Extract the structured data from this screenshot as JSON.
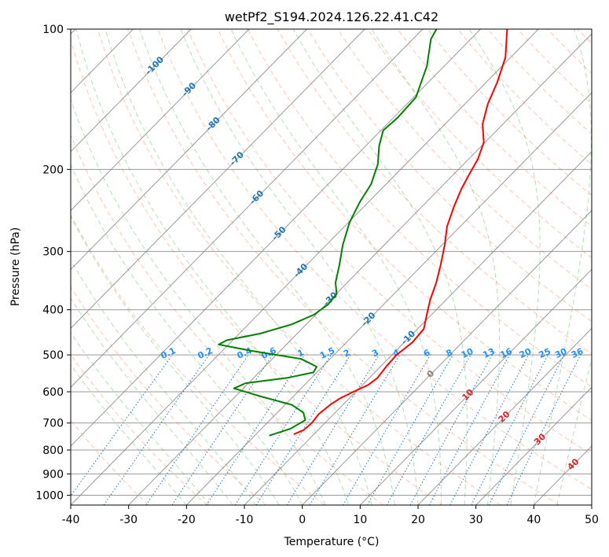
{
  "chart_data": {
    "type": "skew-t",
    "title": "wetPf2_S194.2024.126.22.41.C42",
    "xlabel": "Temperature (°C)",
    "ylabel": "Pressure (hPa)",
    "xlim": [
      -40,
      50
    ],
    "ylim": [
      1050,
      100
    ],
    "y_scale": "log",
    "grid": true,
    "x_ticks": [
      -40,
      -30,
      -20,
      -10,
      0,
      10,
      20,
      30,
      40,
      50
    ],
    "y_ticks": [
      100,
      200,
      300,
      400,
      500,
      600,
      700,
      800,
      900,
      1000
    ],
    "series": [
      {
        "color": "#ff0000",
        "points": [
          {
            "p": 740,
            "t": -13.5
          },
          {
            "p": 725,
            "t": -12.5
          },
          {
            "p": 700,
            "t": -12.3
          },
          {
            "p": 670,
            "t": -12.6
          },
          {
            "p": 640,
            "t": -12.2
          },
          {
            "p": 620,
            "t": -11.6
          },
          {
            "p": 600,
            "t": -10.4
          },
          {
            "p": 580,
            "t": -9.0
          },
          {
            "p": 560,
            "t": -8.6
          },
          {
            "p": 530,
            "t": -9.0
          },
          {
            "p": 500,
            "t": -9.2
          },
          {
            "p": 470,
            "t": -8.6
          },
          {
            "p": 440,
            "t": -8.9
          },
          {
            "p": 410,
            "t": -10.8
          },
          {
            "p": 380,
            "t": -12.8
          },
          {
            "p": 350,
            "t": -14.6
          },
          {
            "p": 320,
            "t": -16.9
          },
          {
            "p": 290,
            "t": -19.6
          },
          {
            "p": 265,
            "t": -22.3
          },
          {
            "p": 240,
            "t": -24.5
          },
          {
            "p": 220,
            "t": -26.2
          },
          {
            "p": 205,
            "t": -27.3
          },
          {
            "p": 190,
            "t": -28.4
          },
          {
            "p": 175,
            "t": -30.2
          },
          {
            "p": 160,
            "t": -33.5
          },
          {
            "p": 145,
            "t": -36.0
          },
          {
            "p": 130,
            "t": -38.1
          },
          {
            "p": 115,
            "t": -40.9
          },
          {
            "p": 100,
            "t": -45.4
          }
        ]
      },
      {
        "color": "#008000",
        "points": [
          {
            "p": 745,
            "t": -17.5
          },
          {
            "p": 720,
            "t": -15.0
          },
          {
            "p": 690,
            "t": -13.9
          },
          {
            "p": 665,
            "t": -15.5
          },
          {
            "p": 640,
            "t": -18.8
          },
          {
            "p": 615,
            "t": -25.3
          },
          {
            "p": 590,
            "t": -31.6
          },
          {
            "p": 575,
            "t": -30.5
          },
          {
            "p": 560,
            "t": -24.2
          },
          {
            "p": 545,
            "t": -20.6
          },
          {
            "p": 530,
            "t": -21.0
          },
          {
            "p": 510,
            "t": -25.0
          },
          {
            "p": 490,
            "t": -35.0
          },
          {
            "p": 475,
            "t": -41.7
          },
          {
            "p": 465,
            "t": -41.0
          },
          {
            "p": 450,
            "t": -36.4
          },
          {
            "p": 430,
            "t": -32.5
          },
          {
            "p": 410,
            "t": -30.3
          },
          {
            "p": 390,
            "t": -29.6
          },
          {
            "p": 370,
            "t": -29.9
          },
          {
            "p": 350,
            "t": -32.0
          },
          {
            "p": 320,
            "t": -34.4
          },
          {
            "p": 290,
            "t": -37.2
          },
          {
            "p": 260,
            "t": -39.8
          },
          {
            "p": 235,
            "t": -41.5
          },
          {
            "p": 215,
            "t": -42.6
          },
          {
            "p": 195,
            "t": -44.8
          },
          {
            "p": 178,
            "t": -47.7
          },
          {
            "p": 165,
            "t": -49.6
          },
          {
            "p": 155,
            "t": -49.3
          },
          {
            "p": 140,
            "t": -49.6
          },
          {
            "p": 120,
            "t": -53.0
          },
          {
            "p": 105,
            "t": -56.9
          },
          {
            "p": 100,
            "t": -57.6
          }
        ]
      }
    ],
    "isotherm_labels": [
      "-100",
      "-90",
      "-80",
      "-70",
      "-60",
      "-50",
      "-40",
      "-30",
      "-20",
      "-10",
      "0",
      "10",
      "20",
      "30",
      "40"
    ],
    "mixing_ratio_labels": [
      "0.1",
      "0.2",
      "0.4",
      "0.6",
      "1",
      "1.5",
      "2",
      "3",
      "4",
      "6",
      "8",
      "10",
      "13",
      "16",
      "20",
      "25",
      "30",
      "36"
    ],
    "colors": {
      "temperature": "#ff0000",
      "dewpoint": "#008000",
      "isotherm": "#808080",
      "dry_adiabat": "#ff7f50",
      "moist_adiabat": "#2ca02c",
      "mixing_ratio": "#1f77b4",
      "isotherm_label_cold": "#1f77b4",
      "isotherm_label_warm": "#d62728",
      "isotherm_label_zero": "#808080",
      "mixing_ratio_label": "#1e90ff"
    }
  }
}
